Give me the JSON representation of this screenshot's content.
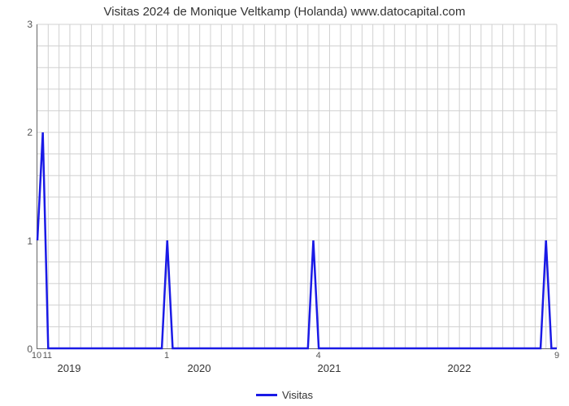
{
  "chart": {
    "type": "line",
    "title": "Visitas 2024 de Monique Veltkamp (Holanda) www.datocapital.com",
    "title_fontsize": 15,
    "background_color": "#ffffff",
    "grid_color": "#d0d0d0",
    "axis_color": "#666666",
    "text_color": "#333333",
    "series": {
      "name": "Visitas",
      "color": "#1a1ae6",
      "line_width": 2.5,
      "x": [
        0,
        0.5,
        1,
        2,
        11.5,
        12,
        12.5,
        13,
        25,
        25.5,
        26,
        26.5,
        27,
        46.5,
        47,
        47.5,
        48
      ],
      "y": [
        1,
        2,
        0,
        0,
        0,
        1,
        0,
        0,
        0,
        1,
        0,
        0,
        0,
        0,
        1,
        0,
        0
      ]
    },
    "x_axis": {
      "domain_min": 0,
      "domain_max": 48,
      "month_ticks": [
        0,
        1,
        2,
        3,
        4,
        5,
        6,
        7,
        8,
        9,
        10,
        11,
        12,
        13,
        14,
        15,
        16,
        17,
        18,
        19,
        20,
        21,
        22,
        23,
        24,
        25,
        26,
        27,
        28,
        29,
        30,
        31,
        32,
        33,
        34,
        35,
        36,
        37,
        38,
        39,
        40,
        41,
        42,
        43,
        44,
        45,
        46,
        47,
        48
      ],
      "minor_labels": [
        {
          "x": 0,
          "text": "10"
        },
        {
          "x": 1,
          "text": "11"
        },
        {
          "x": 12,
          "text": "1"
        },
        {
          "x": 26,
          "text": "4"
        },
        {
          "x": 48,
          "text": "9"
        }
      ],
      "year_labels": [
        {
          "x": 3,
          "text": "2019"
        },
        {
          "x": 15,
          "text": "2020"
        },
        {
          "x": 27,
          "text": "2021"
        },
        {
          "x": 39,
          "text": "2022"
        }
      ]
    },
    "y_axis": {
      "domain_min": 0,
      "domain_max": 3,
      "ticks": [
        0,
        1,
        2,
        3
      ],
      "grid_sub": 5
    },
    "legend": {
      "label": "Visitas"
    }
  }
}
